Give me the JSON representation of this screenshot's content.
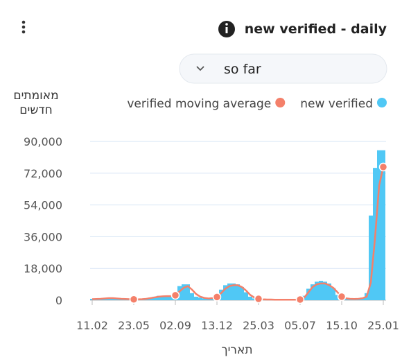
{
  "chart_data": {
    "type": "bar",
    "title": "new verified - daily",
    "filter": "so far",
    "ylabel": "מאומתים חדשים",
    "xlabel": "תאריך",
    "categories": [
      "11.02",
      null,
      null,
      null,
      null,
      null,
      null,
      null,
      null,
      null,
      "23.05",
      null,
      null,
      null,
      null,
      null,
      null,
      null,
      null,
      null,
      "02.09",
      null,
      null,
      null,
      null,
      null,
      null,
      null,
      null,
      null,
      "13.12",
      null,
      null,
      null,
      null,
      null,
      null,
      null,
      null,
      null,
      "25.03",
      null,
      null,
      null,
      null,
      null,
      null,
      null,
      null,
      null,
      "05.07",
      null,
      null,
      null,
      null,
      null,
      null,
      null,
      null,
      null,
      "15.10",
      null,
      null,
      null,
      null,
      null,
      null,
      null,
      null,
      null,
      "25.01"
    ],
    "series": [
      {
        "name": "new verified",
        "type": "bar",
        "color": "#50c8f5",
        "values": [
          800,
          900,
          1000,
          1200,
          1500,
          1300,
          1000,
          800,
          700,
          600,
          500,
          500,
          700,
          1000,
          1500,
          2000,
          2500,
          2500,
          2500,
          2500,
          3500,
          8000,
          9000,
          9000,
          4000,
          2000,
          1500,
          1000,
          1000,
          1500,
          2500,
          6000,
          8500,
          9500,
          9500,
          9000,
          7500,
          4500,
          2000,
          1000,
          600,
          500,
          400,
          400,
          300,
          300,
          300,
          300,
          300,
          400,
          600,
          2500,
          6500,
          9000,
          10500,
          11000,
          10500,
          9500,
          7000,
          3000,
          1200,
          900,
          700,
          700,
          900,
          1500,
          4000,
          48000,
          75000,
          85000,
          85000
        ]
      },
      {
        "name": "verified moving average",
        "type": "line",
        "color": "#f4806a",
        "values": [
          600,
          700,
          800,
          1000,
          1200,
          1200,
          1000,
          800,
          700,
          600,
          500,
          500,
          600,
          800,
          1200,
          1600,
          2000,
          2200,
          2300,
          2300,
          2800,
          5000,
          7000,
          8000,
          6000,
          3500,
          2000,
          1300,
          1000,
          1200,
          1800,
          4000,
          6500,
          8000,
          8500,
          8500,
          7500,
          5500,
          3000,
          1500,
          800,
          500,
          400,
          400,
          300,
          300,
          300,
          300,
          300,
          300,
          400,
          1500,
          4500,
          7500,
          9000,
          9500,
          9500,
          8500,
          7000,
          4500,
          2000,
          1100,
          800,
          700,
          800,
          1100,
          2000,
          10000,
          35000,
          65000,
          75500
        ]
      }
    ],
    "ylim": [
      0,
      90000
    ],
    "yticks": [
      0,
      {
        "value": 18000,
        "label": "18,000"
      },
      {
        "value": 36000,
        "label": "36,000"
      },
      {
        "value": 54000,
        "label": "54,000"
      },
      {
        "value": 72000,
        "label": "72,000"
      },
      {
        "value": 90000,
        "label": "90,000"
      }
    ],
    "grid": true
  }
}
